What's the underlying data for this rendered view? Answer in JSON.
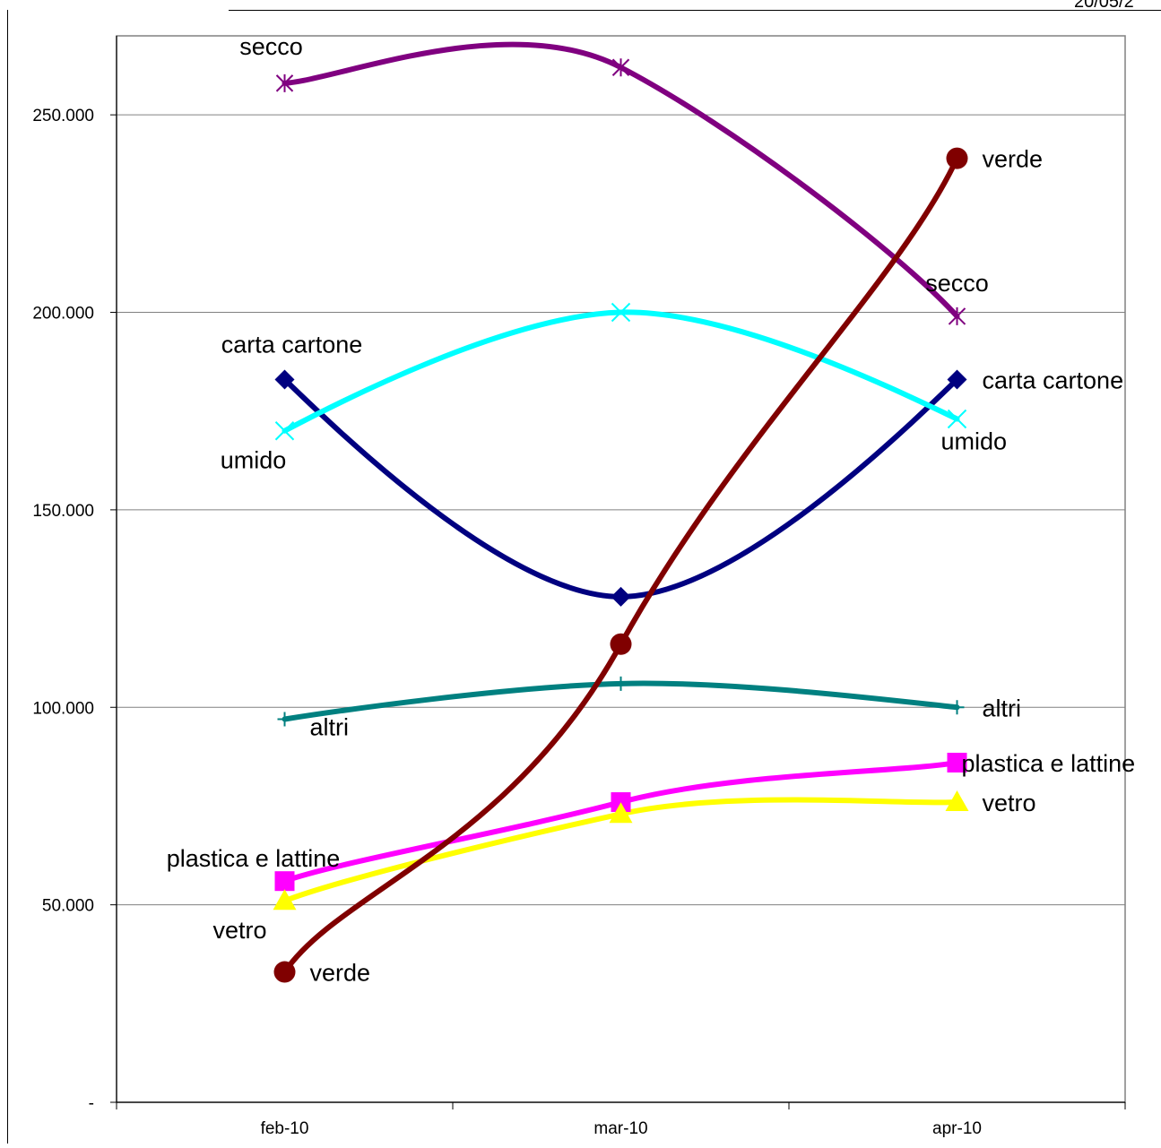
{
  "page": {
    "corner_date": "20/05/2"
  },
  "chart_data": {
    "type": "line",
    "smooth": true,
    "title": "",
    "xlabel": "",
    "ylabel": "",
    "categories": [
      "feb-10",
      "mar-10",
      "apr-10"
    ],
    "ylim": [
      0,
      270000
    ],
    "yticks": [
      0,
      50000,
      100000,
      150000,
      200000,
      250000
    ],
    "ytick_labels": [
      "-",
      "50.000",
      "100.000",
      "150.000",
      "200.000",
      "250.000"
    ],
    "grid": true,
    "legend": "none",
    "series": [
      {
        "name": "secco",
        "values": [
          258000,
          262000,
          199000
        ],
        "color": "#800080",
        "marker": "star",
        "label_first": "secco",
        "label_last": "secco"
      },
      {
        "name": "carta cartone",
        "values": [
          183000,
          128000,
          183000
        ],
        "color": "#000080",
        "marker": "diamond",
        "label_first": "carta cartone",
        "label_last": "carta cartone"
      },
      {
        "name": "umido",
        "values": [
          170000,
          200000,
          173000
        ],
        "color": "#00FFFF",
        "marker": "x",
        "label_first": "umido",
        "label_last": "umido"
      },
      {
        "name": "altri",
        "values": [
          97000,
          106000,
          100000
        ],
        "color": "#008080",
        "marker": "plus",
        "label_first": "altri",
        "label_last": "altri"
      },
      {
        "name": "plastica e lattine",
        "values": [
          56000,
          76000,
          86000
        ],
        "color": "#FF00FF",
        "marker": "square",
        "label_first": "plastica e lattine",
        "label_last": "plastica e lattine"
      },
      {
        "name": "vetro",
        "values": [
          51000,
          73000,
          76000
        ],
        "color": "#FFFF00",
        "marker": "triangle",
        "label_first": "vetro",
        "label_last": "vetro"
      },
      {
        "name": "verde",
        "values": [
          33000,
          116000,
          239000
        ],
        "color": "#800000",
        "marker": "circle",
        "label_first": "verde",
        "label_last": "verde"
      }
    ]
  }
}
